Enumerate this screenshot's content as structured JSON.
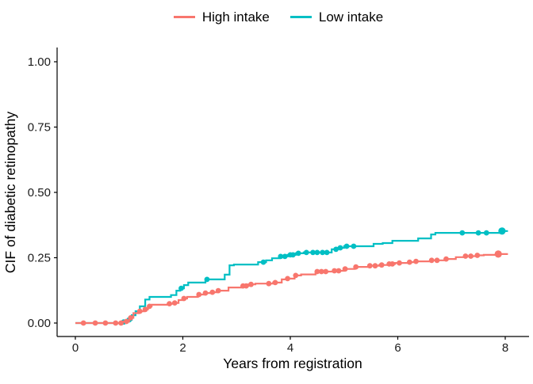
{
  "figure": {
    "legend": {
      "items": [
        {
          "label": "High intake",
          "color": "#F8766D"
        },
        {
          "label": "Low intake",
          "color": "#00BFC4"
        }
      ]
    }
  },
  "chart_data": {
    "type": "line",
    "subtype": "step-function-cumulative-incidence",
    "title": "",
    "xlabel": "Years from registration",
    "ylabel": "CIF of diabetic retinopathy",
    "xlim": [
      -0.35,
      8.45
    ],
    "ylim": [
      -0.04,
      1.04
    ],
    "xticks": [
      {
        "value": 0,
        "label": "0"
      },
      {
        "value": 2,
        "label": "2"
      },
      {
        "value": 4,
        "label": "4"
      },
      {
        "value": 6,
        "label": "6"
      },
      {
        "value": 8,
        "label": "8"
      }
    ],
    "yticks": [
      {
        "value": 0,
        "label": "0.00"
      },
      {
        "value": 0.25,
        "label": "0.25"
      },
      {
        "value": 0.5,
        "label": "0.50"
      },
      {
        "value": 0.75,
        "label": "0.75"
      },
      {
        "value": 1,
        "label": "1.00"
      }
    ],
    "grid": false,
    "legend_position": "top-center",
    "series": [
      {
        "name": "Low intake",
        "color": "#00BFC4",
        "step_points": [
          [
            0,
            0
          ],
          [
            0.85,
            0.004
          ],
          [
            0.95,
            0.012
          ],
          [
            1.05,
            0.03
          ],
          [
            1.12,
            0.045
          ],
          [
            1.2,
            0.064
          ],
          [
            1.3,
            0.09
          ],
          [
            1.38,
            0.1
          ],
          [
            1.78,
            0.107
          ],
          [
            1.88,
            0.124
          ],
          [
            1.95,
            0.133
          ],
          [
            2.02,
            0.145
          ],
          [
            2.1,
            0.155
          ],
          [
            2.42,
            0.167
          ],
          [
            2.78,
            0.185
          ],
          [
            2.87,
            0.221
          ],
          [
            2.95,
            0.224
          ],
          [
            3.4,
            0.233
          ],
          [
            3.55,
            0.24
          ],
          [
            3.66,
            0.248
          ],
          [
            3.8,
            0.255
          ],
          [
            3.95,
            0.261
          ],
          [
            4.1,
            0.267
          ],
          [
            4.25,
            0.27
          ],
          [
            4.77,
            0.282
          ],
          [
            4.88,
            0.288
          ],
          [
            5.0,
            0.294
          ],
          [
            5.55,
            0.303
          ],
          [
            5.72,
            0.306
          ],
          [
            5.9,
            0.315
          ],
          [
            6.38,
            0.324
          ],
          [
            6.62,
            0.339
          ],
          [
            6.7,
            0.345
          ],
          [
            7.92,
            0.352
          ]
        ],
        "curve_end": [
          8.05,
          0.352
        ],
        "censor_marks": [
          [
            0.9,
            0.004
          ],
          [
            1.0,
            0.012
          ],
          [
            1.97,
            0.133
          ],
          [
            2.45,
            0.167
          ],
          [
            3.5,
            0.233
          ],
          [
            3.82,
            0.255
          ],
          [
            3.9,
            0.255
          ],
          [
            4.0,
            0.261
          ],
          [
            4.05,
            0.261
          ],
          [
            4.15,
            0.267
          ],
          [
            4.3,
            0.27
          ],
          [
            4.42,
            0.27
          ],
          [
            4.5,
            0.27
          ],
          [
            4.6,
            0.27
          ],
          [
            4.68,
            0.27
          ],
          [
            4.85,
            0.282
          ],
          [
            4.93,
            0.288
          ],
          [
            5.05,
            0.294
          ],
          [
            5.18,
            0.294
          ],
          [
            7.2,
            0.345
          ],
          [
            7.5,
            0.345
          ],
          [
            7.65,
            0.345
          ]
        ],
        "end_marker": [
          7.94,
          0.352
        ]
      },
      {
        "name": "High intake",
        "color": "#F8766D",
        "step_points": [
          [
            0,
            0
          ],
          [
            0.88,
            0.006
          ],
          [
            1.0,
            0.02
          ],
          [
            1.08,
            0.038
          ],
          [
            1.18,
            0.045
          ],
          [
            1.28,
            0.052
          ],
          [
            1.35,
            0.064
          ],
          [
            1.42,
            0.07
          ],
          [
            1.72,
            0.074
          ],
          [
            1.82,
            0.077
          ],
          [
            1.92,
            0.088
          ],
          [
            2.0,
            0.094
          ],
          [
            2.08,
            0.1
          ],
          [
            2.28,
            0.109
          ],
          [
            2.4,
            0.115
          ],
          [
            2.52,
            0.118
          ],
          [
            2.64,
            0.124
          ],
          [
            2.85,
            0.136
          ],
          [
            3.1,
            0.142
          ],
          [
            3.22,
            0.148
          ],
          [
            3.35,
            0.151
          ],
          [
            3.68,
            0.155
          ],
          [
            3.84,
            0.167
          ],
          [
            3.92,
            0.17
          ],
          [
            4.08,
            0.182
          ],
          [
            4.2,
            0.186
          ],
          [
            4.47,
            0.197
          ],
          [
            4.8,
            0.2
          ],
          [
            5.0,
            0.207
          ],
          [
            5.2,
            0.215
          ],
          [
            5.48,
            0.219
          ],
          [
            5.65,
            0.222
          ],
          [
            5.82,
            0.226
          ],
          [
            5.95,
            0.23
          ],
          [
            6.2,
            0.233
          ],
          [
            6.32,
            0.236
          ],
          [
            6.6,
            0.24
          ],
          [
            6.88,
            0.245
          ],
          [
            7.08,
            0.252
          ],
          [
            7.25,
            0.256
          ],
          [
            7.45,
            0.259
          ],
          [
            7.6,
            0.261
          ],
          [
            7.88,
            0.264
          ]
        ],
        "curve_end": [
          8.05,
          0.264
        ],
        "censor_marks": [
          [
            0.15,
            0
          ],
          [
            0.37,
            0
          ],
          [
            0.56,
            0
          ],
          [
            0.75,
            0
          ],
          [
            0.85,
            0
          ],
          [
            0.95,
            0.006
          ],
          [
            1.03,
            0.02
          ],
          [
            1.2,
            0.045
          ],
          [
            1.3,
            0.052
          ],
          [
            1.38,
            0.064
          ],
          [
            1.75,
            0.074
          ],
          [
            1.85,
            0.077
          ],
          [
            2.02,
            0.094
          ],
          [
            2.3,
            0.109
          ],
          [
            2.42,
            0.115
          ],
          [
            2.55,
            0.118
          ],
          [
            2.66,
            0.124
          ],
          [
            3.12,
            0.142
          ],
          [
            3.18,
            0.142
          ],
          [
            3.27,
            0.148
          ],
          [
            3.6,
            0.151
          ],
          [
            3.72,
            0.155
          ],
          [
            3.95,
            0.17
          ],
          [
            4.1,
            0.182
          ],
          [
            4.5,
            0.197
          ],
          [
            4.58,
            0.197
          ],
          [
            4.66,
            0.197
          ],
          [
            4.82,
            0.2
          ],
          [
            4.9,
            0.2
          ],
          [
            5.02,
            0.207
          ],
          [
            5.22,
            0.215
          ],
          [
            5.48,
            0.219
          ],
          [
            5.58,
            0.219
          ],
          [
            5.7,
            0.222
          ],
          [
            5.84,
            0.226
          ],
          [
            5.9,
            0.226
          ],
          [
            6.03,
            0.23
          ],
          [
            6.22,
            0.233
          ],
          [
            6.34,
            0.236
          ],
          [
            6.63,
            0.24
          ],
          [
            6.73,
            0.24
          ],
          [
            6.9,
            0.245
          ],
          [
            7.26,
            0.256
          ],
          [
            7.36,
            0.256
          ],
          [
            7.48,
            0.259
          ]
        ],
        "end_marker": [
          7.87,
          0.264
        ]
      }
    ]
  }
}
